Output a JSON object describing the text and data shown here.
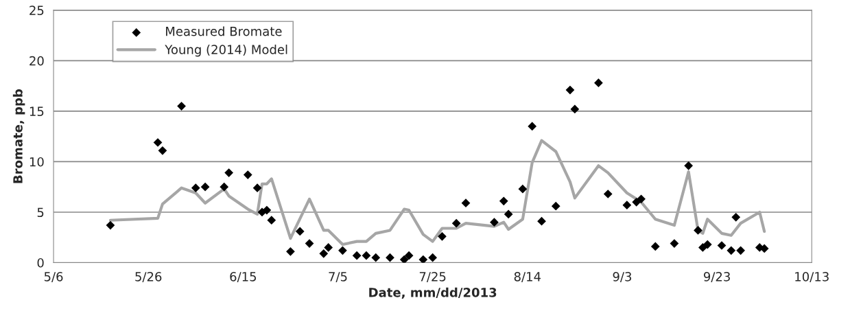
{
  "chart_data": {
    "type": "scatter",
    "xlabel": "Date, mm/dd/2013",
    "ylabel": "Bromate, ppb",
    "xlim": [
      "2013-05-06",
      "2013-10-13"
    ],
    "xticks": [
      {
        "value": "2013-05-06",
        "label": "5/6"
      },
      {
        "value": "2013-05-26",
        "label": "5/26"
      },
      {
        "value": "2013-06-15",
        "label": "6/15"
      },
      {
        "value": "2013-07-05",
        "label": "7/5"
      },
      {
        "value": "2013-07-25",
        "label": "7/25"
      },
      {
        "value": "2013-08-14",
        "label": "8/14"
      },
      {
        "value": "2013-09-03",
        "label": "9/3"
      },
      {
        "value": "2013-09-23",
        "label": "9/23"
      },
      {
        "value": "2013-10-13",
        "label": "10/13"
      }
    ],
    "ylim": [
      0,
      25
    ],
    "yticks": [
      0,
      5,
      10,
      15,
      20,
      25
    ],
    "grid": "y",
    "legend": "top left",
    "series": [
      {
        "name": "Measured Bromate",
        "marker": "diamond",
        "color": "#000000",
        "x": [
          "2013-05-18",
          "2013-05-28",
          "2013-05-29",
          "2013-06-02",
          "2013-06-05",
          "2013-06-07",
          "2013-06-11",
          "2013-06-12",
          "2013-06-16",
          "2013-06-18",
          "2013-06-19",
          "2013-06-20",
          "2013-06-21",
          "2013-06-25",
          "2013-06-27",
          "2013-06-29",
          "2013-07-02",
          "2013-07-03",
          "2013-07-06",
          "2013-07-09",
          "2013-07-11",
          "2013-07-13",
          "2013-07-16",
          "2013-07-19",
          "2013-07-20",
          "2013-07-23",
          "2013-07-25",
          "2013-07-27",
          "2013-07-30",
          "2013-08-01",
          "2013-08-07",
          "2013-08-09",
          "2013-08-10",
          "2013-08-13",
          "2013-08-15",
          "2013-08-17",
          "2013-08-20",
          "2013-08-23",
          "2013-08-24",
          "2013-08-29",
          "2013-08-31",
          "2013-09-04",
          "2013-09-06",
          "2013-09-07",
          "2013-09-10",
          "2013-09-14",
          "2013-09-17",
          "2013-09-19",
          "2013-09-20",
          "2013-09-21",
          "2013-09-24",
          "2013-09-26",
          "2013-09-27",
          "2013-09-28",
          "2013-10-02",
          "2013-10-03"
        ],
        "values": [
          3.7,
          11.9,
          11.1,
          15.5,
          7.4,
          7.5,
          7.5,
          8.9,
          8.7,
          7.4,
          5.0,
          5.2,
          4.2,
          1.1,
          3.1,
          1.9,
          0.9,
          1.5,
          1.2,
          0.7,
          0.7,
          0.5,
          0.5,
          0.3,
          0.7,
          0.3,
          0.5,
          2.6,
          3.9,
          5.9,
          4.0,
          6.1,
          4.8,
          7.3,
          13.5,
          4.1,
          5.6,
          17.1,
          15.2,
          17.8,
          6.8,
          5.7,
          6.0,
          6.3,
          1.6,
          1.9,
          9.6,
          3.2,
          1.5,
          1.8,
          1.7,
          1.2,
          4.5,
          1.2,
          1.5,
          1.4
        ]
      },
      {
        "name": "Young (2014) Model",
        "type": "line",
        "marker": "none",
        "line_style": "solid",
        "color": "#a6a6a6",
        "x": [
          "2013-05-18",
          "2013-05-28",
          "2013-05-29",
          "2013-06-02",
          "2013-06-05",
          "2013-06-07",
          "2013-06-11",
          "2013-06-12",
          "2013-06-16",
          "2013-06-18",
          "2013-06-19",
          "2013-06-20",
          "2013-06-21",
          "2013-06-25",
          "2013-06-29",
          "2013-07-02",
          "2013-07-03",
          "2013-07-06",
          "2013-07-09",
          "2013-07-11",
          "2013-07-13",
          "2013-07-16",
          "2013-07-19",
          "2013-07-20",
          "2013-07-23",
          "2013-07-25",
          "2013-07-27",
          "2013-07-30",
          "2013-08-01",
          "2013-08-07",
          "2013-08-09",
          "2013-08-10",
          "2013-08-13",
          "2013-08-15",
          "2013-08-17",
          "2013-08-20",
          "2013-08-23",
          "2013-08-24",
          "2013-08-29",
          "2013-08-31",
          "2013-09-04",
          "2013-09-06",
          "2013-09-07",
          "2013-09-10",
          "2013-09-14",
          "2013-09-17",
          "2013-09-19",
          "2013-09-20",
          "2013-09-21",
          "2013-09-24",
          "2013-09-26",
          "2013-09-28",
          "2013-10-02",
          "2013-10-03"
        ],
        "values": [
          4.2,
          4.4,
          5.8,
          7.4,
          6.9,
          5.9,
          7.3,
          6.6,
          5.3,
          4.8,
          7.8,
          7.8,
          8.3,
          2.4,
          6.3,
          3.2,
          3.2,
          1.8,
          2.1,
          2.1,
          2.9,
          3.2,
          5.3,
          5.2,
          2.8,
          2.1,
          3.4,
          3.4,
          3.9,
          3.6,
          4.0,
          3.3,
          4.3,
          9.9,
          12.1,
          11.0,
          8.0,
          6.4,
          9.6,
          8.9,
          6.9,
          6.3,
          6.0,
          4.3,
          3.7,
          9.0,
          3.2,
          2.9,
          4.3,
          2.9,
          2.7,
          3.9,
          5.0,
          3.1
        ]
      }
    ]
  }
}
